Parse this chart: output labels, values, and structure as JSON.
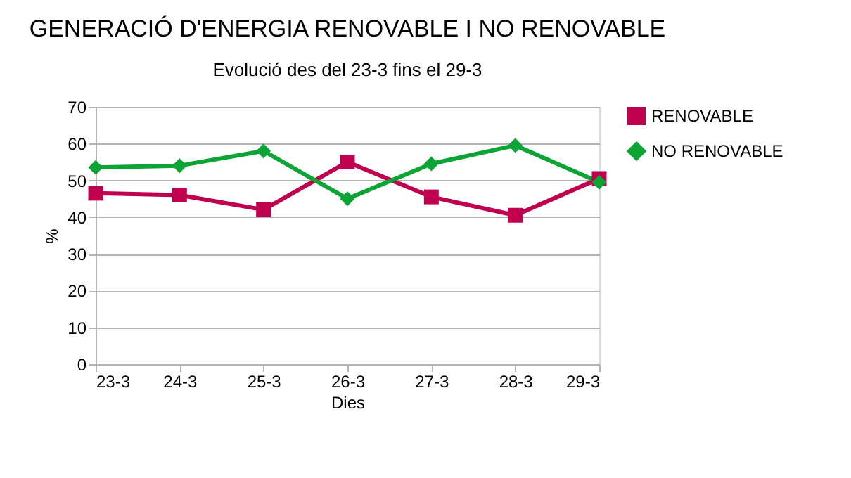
{
  "chart_data": {
    "type": "line",
    "title": "GENERACIÓ D'ENERGIA RENOVABLE I NO RENOVABLE",
    "subtitle": "Evolució des del 23-3 fins el 29-3",
    "xlabel": "Dies",
    "ylabel": "%",
    "categories": [
      "23-3",
      "24-3",
      "25-3",
      "26-3",
      "27-3",
      "28-3",
      "29-3"
    ],
    "series": [
      {
        "name": "RENOVABLE",
        "color": "#c0004e",
        "marker": "square",
        "values": [
          46.5,
          46,
          42,
          55,
          45.5,
          40.5,
          50.5
        ]
      },
      {
        "name": "NO RENOVABLE",
        "color": "#0ca535",
        "marker": "diamond",
        "values": [
          53.5,
          54,
          58,
          45,
          54.5,
          59.5,
          49.5
        ]
      }
    ],
    "ylim": [
      0,
      70
    ],
    "yticks": [
      0,
      10,
      20,
      30,
      40,
      50,
      60,
      70
    ],
    "grid": "y",
    "legend": "right",
    "line_style": "solid"
  }
}
